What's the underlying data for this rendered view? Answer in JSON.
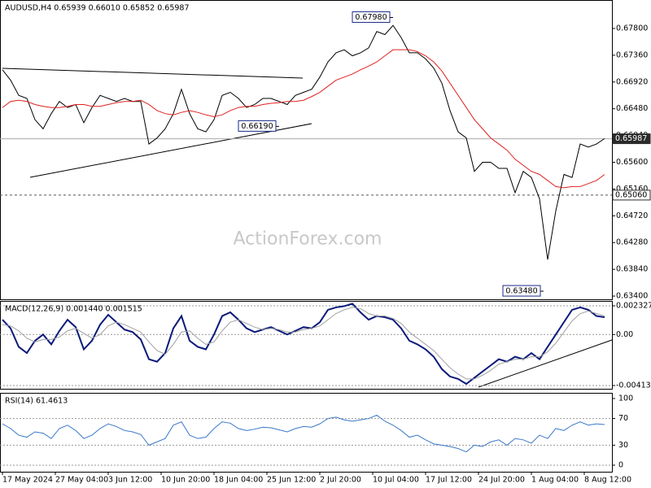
{
  "chart_data": [
    {
      "type": "line",
      "title": "AUDUSD,H4  0.65939 0.66010 0.65852 0.65987",
      "watermark": "ActionForex.com",
      "xlim": [
        0,
        75
      ],
      "ylim": [
        0.63347,
        0.68268
      ],
      "yticks": [
        {
          "value": 0.678,
          "label": "0.67800"
        },
        {
          "value": 0.6736,
          "label": "0.67360"
        },
        {
          "value": 0.6692,
          "label": "0.66920"
        },
        {
          "value": 0.6648,
          "label": "0.66480"
        },
        {
          "value": 0.6604,
          "label": "0.66040"
        },
        {
          "value": 0.656,
          "label": "0.65600"
        },
        {
          "value": 0.6516,
          "label": "0.65160"
        },
        {
          "value": 0.6472,
          "label": "0.64720"
        },
        {
          "value": 0.6428,
          "label": "0.64280"
        },
        {
          "value": 0.6384,
          "label": "0.63840"
        },
        {
          "value": 0.634,
          "label": "0.63400"
        }
      ],
      "series": [
        {
          "name": "AUDUSD",
          "color": "#000000",
          "values": [
            0.6712,
            0.6695,
            0.667,
            0.6665,
            0.663,
            0.6615,
            0.664,
            0.666,
            0.665,
            0.6655,
            0.6625,
            0.665,
            0.667,
            0.6665,
            0.666,
            0.6665,
            0.666,
            0.666,
            0.659,
            0.66,
            0.6615,
            0.664,
            0.668,
            0.664,
            0.6615,
            0.661,
            0.663,
            0.667,
            0.6675,
            0.6665,
            0.665,
            0.6655,
            0.6665,
            0.6665,
            0.666,
            0.6655,
            0.667,
            0.6675,
            0.668,
            0.67,
            0.6725,
            0.674,
            0.6745,
            0.6735,
            0.674,
            0.6748,
            0.6775,
            0.677,
            0.6785,
            0.6765,
            0.674,
            0.674,
            0.673,
            0.6715,
            0.669,
            0.6645,
            0.661,
            0.66,
            0.6545,
            0.656,
            0.656,
            0.655,
            0.655,
            0.651,
            0.6545,
            0.6535,
            0.65,
            0.64,
            0.648,
            0.654,
            0.6535,
            0.659,
            0.6585,
            0.659,
            0.6599
          ]
        },
        {
          "name": "MA",
          "color": "#e02020",
          "values": [
            0.665,
            0.666,
            0.6662,
            0.666,
            0.6655,
            0.6652,
            0.665,
            0.665,
            0.6652,
            0.6655,
            0.6655,
            0.6652,
            0.6652,
            0.6655,
            0.6658,
            0.666,
            0.666,
            0.6662,
            0.6655,
            0.6645,
            0.664,
            0.6638,
            0.6642,
            0.6645,
            0.6642,
            0.6638,
            0.6635,
            0.6638,
            0.6645,
            0.665,
            0.6652,
            0.6652,
            0.6655,
            0.6657,
            0.6658,
            0.666,
            0.666,
            0.6662,
            0.6668,
            0.6675,
            0.6685,
            0.6695,
            0.67,
            0.6705,
            0.6712,
            0.6718,
            0.6725,
            0.6735,
            0.6745,
            0.6745,
            0.6745,
            0.6742,
            0.6735,
            0.6725,
            0.671,
            0.669,
            0.667,
            0.665,
            0.663,
            0.6615,
            0.66,
            0.659,
            0.658,
            0.6565,
            0.6555,
            0.6545,
            0.654,
            0.653,
            0.652,
            0.6518,
            0.652,
            0.652,
            0.6525,
            0.653,
            0.654
          ]
        }
      ],
      "hlines": [
        {
          "value": 0.65987,
          "label": "0.65987",
          "style": "solid"
        },
        {
          "value": 0.6506,
          "label": "0.65060",
          "style": "dashed"
        }
      ],
      "annotations": [
        {
          "label": "0.67980",
          "value": 0.6798,
          "x": 48
        },
        {
          "label": "0.66190",
          "value": 0.6619,
          "x": 34
        },
        {
          "label": "0.63480",
          "value": 0.6348,
          "x": 66.5
        }
      ]
    },
    {
      "type": "line",
      "title": "MACD(12,26,9) 0.001440 0.001515",
      "xlim": [
        0,
        75
      ],
      "ylim": [
        -0.004395,
        0.002722
      ],
      "yticks": [
        {
          "value": 0.002327,
          "label": "0.002327"
        },
        {
          "value": 0,
          "label": "0.00"
        },
        {
          "value": -0.004131,
          "label": "-0.004131"
        }
      ],
      "series": [
        {
          "name": "MACD",
          "color": "#0a1a7a",
          "values": [
            0.0012,
            0.0005,
            -0.001,
            -0.0015,
            -0.0005,
            0,
            -0.0008,
            0.0003,
            0.0012,
            0.0006,
            -0.0012,
            -0.0005,
            0.0008,
            0.0016,
            0.001,
            0.0004,
            0.0002,
            -0.0004,
            -0.002,
            -0.0022,
            -0.0015,
            0.0005,
            0.0015,
            -0.0005,
            -0.001,
            -0.0012,
            0,
            0.0015,
            0.0018,
            0.0012,
            0.0005,
            0.0002,
            0.0004,
            0.0006,
            0.0003,
            0,
            0.0003,
            0.0006,
            0.0005,
            0.001,
            0.002,
            0.0022,
            0.0023,
            0.0025,
            0.0018,
            0.0012,
            0.0015,
            0.0014,
            0.0012,
            0.0005,
            -0.0005,
            -0.0008,
            -0.0012,
            -0.0018,
            -0.0028,
            -0.0034,
            -0.0036,
            -0.004,
            -0.0035,
            -0.003,
            -0.0025,
            -0.002,
            -0.0022,
            -0.0018,
            -0.002,
            -0.0015,
            -0.002,
            -0.001,
            0,
            0.001,
            0.002,
            0.0022,
            0.002,
            0.0015,
            0.0014
          ]
        },
        {
          "name": "Signal",
          "color": "#a0a0a0",
          "values": [
            0.0008,
            0.0007,
            0.0003,
            -0.0003,
            -0.0006,
            -0.0004,
            -0.0004,
            -0.0002,
            0.0003,
            0.0005,
            0.0001,
            -0.0003,
            0,
            0.0007,
            0.001,
            0.0008,
            0.0005,
            0.0002,
            -0.0006,
            -0.0013,
            -0.0016,
            -0.0008,
            0.0002,
            0.0003,
            -0.0003,
            -0.0008,
            -0.0006,
            0.0003,
            0.001,
            0.0012,
            0.0009,
            0.0006,
            0.0004,
            0.0005,
            0.0004,
            0.0002,
            0.0002,
            0.0004,
            0.0005,
            0.0007,
            0.0012,
            0.0017,
            0.002,
            0.0022,
            0.0021,
            0.0017,
            0.0015,
            0.0015,
            0.0013,
            0.0009,
            0.0002,
            -0.0003,
            -0.0008,
            -0.0013,
            -0.002,
            -0.0027,
            -0.0032,
            -0.0036,
            -0.0036,
            -0.0033,
            -0.0029,
            -0.0024,
            -0.0022,
            -0.002,
            -0.002,
            -0.0018,
            -0.0018,
            -0.0014,
            -0.0007,
            0.0002,
            0.0011,
            0.0017,
            0.0019,
            0.0017,
            0.0015
          ]
        }
      ]
    },
    {
      "type": "line",
      "title": "RSI(14) 61.4613",
      "xlim": [
        0,
        75
      ],
      "ylim": [
        -9.8,
        108.5
      ],
      "yticks": [
        100,
        70,
        30,
        0
      ],
      "xticks": [
        {
          "value": 0,
          "label": "17 May 2024"
        },
        {
          "value": 6.5,
          "label": "27 May 04:00"
        },
        {
          "value": 13,
          "label": "3 Jun 12:00"
        },
        {
          "value": 19.5,
          "label": "10 Jun 20:00"
        },
        {
          "value": 26,
          "label": "18 Jun 04:00"
        },
        {
          "value": 32.5,
          "label": "25 Jun 12:00"
        },
        {
          "value": 39,
          "label": "2 Jul 20:00"
        },
        {
          "value": 45.5,
          "label": "10 Jul 04:00"
        },
        {
          "value": 52,
          "label": "17 Jul 12:00"
        },
        {
          "value": 58.5,
          "label": "24 Jul 20:00"
        },
        {
          "value": 65,
          "label": "1 Aug 04:00"
        },
        {
          "value": 71.5,
          "label": "8 Aug 12:00"
        }
      ],
      "series": [
        {
          "name": "RSI",
          "color": "#3a78c8",
          "values": [
            62,
            55,
            45,
            42,
            50,
            48,
            40,
            55,
            60,
            52,
            40,
            45,
            55,
            62,
            58,
            52,
            50,
            46,
            30,
            35,
            40,
            60,
            65,
            45,
            40,
            42,
            55,
            65,
            63,
            55,
            52,
            54,
            57,
            56,
            53,
            50,
            55,
            58,
            57,
            62,
            70,
            72,
            68,
            66,
            68,
            70,
            75,
            66,
            60,
            52,
            42,
            45,
            38,
            32,
            30,
            28,
            25,
            20,
            30,
            28,
            35,
            38,
            30,
            40,
            38,
            33,
            45,
            40,
            55,
            52,
            60,
            65,
            60,
            62,
            61
          ]
        }
      ]
    }
  ]
}
